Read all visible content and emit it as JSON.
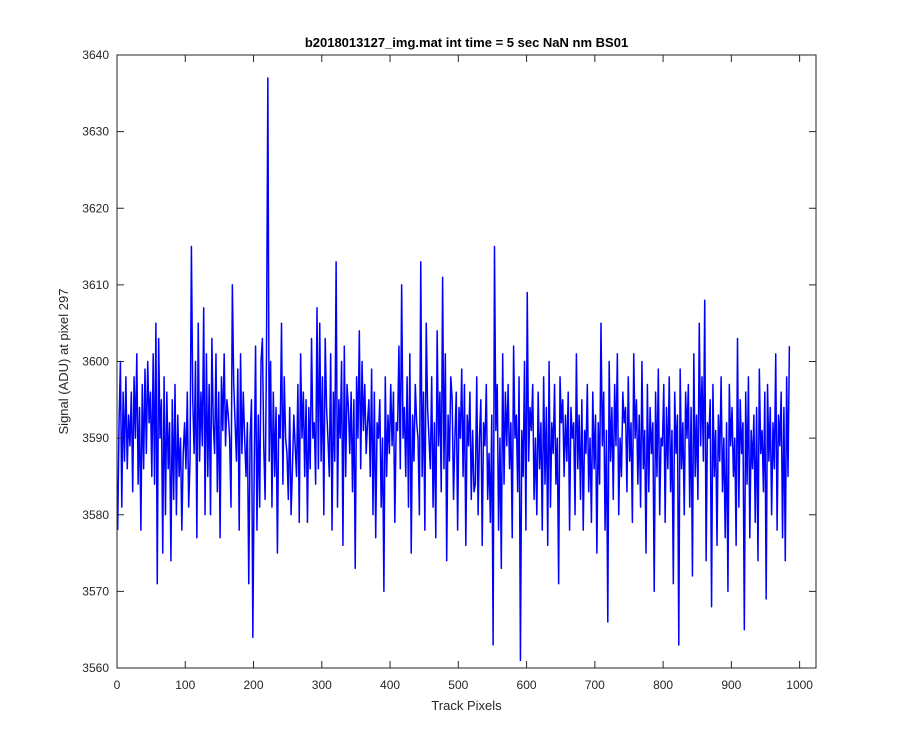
{
  "chart_data": {
    "type": "line",
    "title": "b2018013127_img.mat int time = 5 sec  NaN nm BS01",
    "xlabel": "Track Pixels",
    "ylabel": "Signal (ADU) at pixel 297",
    "xlim": [
      0,
      1024
    ],
    "ylim": [
      3560,
      3640
    ],
    "xticks": [
      "0",
      "100",
      "200",
      "300",
      "400",
      "500",
      "600",
      "700",
      "800",
      "900",
      "1000"
    ],
    "yticks": [
      "3560",
      "3570",
      "3580",
      "3590",
      "3600",
      "3610",
      "3620",
      "3630",
      "3640"
    ],
    "grid": false,
    "box": true,
    "series": [
      {
        "color": "#0000ff",
        "x_start": 1,
        "x_step": 1,
        "sample_spacing": 2,
        "values": [
          3578,
          3592,
          3600,
          3581,
          3596,
          3587,
          3598,
          3586,
          3593,
          3589,
          3596,
          3583,
          3598,
          3590,
          3601,
          3584,
          3594,
          3578,
          3597,
          3586,
          3599,
          3588,
          3600,
          3592,
          3596,
          3585,
          3601,
          3584,
          3605,
          3571,
          3603,
          3590,
          3595,
          3575,
          3598,
          3580,
          3596,
          3586,
          3592,
          3574,
          3595,
          3582,
          3597,
          3580,
          3593,
          3585,
          3590,
          3578,
          3588,
          3592,
          3586,
          3596,
          3581,
          3587,
          3615,
          3595,
          3588,
          3600,
          3577,
          3605,
          3587,
          3596,
          3589,
          3607,
          3580,
          3601,
          3585,
          3597,
          3580,
          3603,
          3592,
          3588,
          3601,
          3583,
          3596,
          3577,
          3598,
          3591,
          3601,
          3589,
          3595,
          3593,
          3590,
          3581,
          3610,
          3597,
          3592,
          3587,
          3599,
          3578,
          3601,
          3588,
          3596,
          3590,
          3585,
          3592,
          3571,
          3590,
          3595,
          3564,
          3586,
          3602,
          3578,
          3593,
          3581,
          3600,
          3603,
          3589,
          3582,
          3601,
          3637,
          3587,
          3600,
          3581,
          3596,
          3585,
          3594,
          3575,
          3593,
          3590,
          3605,
          3584,
          3598,
          3590,
          3588,
          3582,
          3594,
          3580,
          3586,
          3593,
          3589,
          3585,
          3597,
          3579,
          3601,
          3590,
          3596,
          3585,
          3595,
          3579,
          3594,
          3586,
          3603,
          3590,
          3592,
          3584,
          3607,
          3586,
          3605,
          3587,
          3598,
          3580,
          3603,
          3594,
          3590,
          3585,
          3601,
          3578,
          3596,
          3587,
          3613,
          3581,
          3595,
          3590,
          3600,
          3576,
          3602,
          3585,
          3597,
          3594,
          3588,
          3596,
          3583,
          3595,
          3573,
          3598,
          3590,
          3604,
          3586,
          3600,
          3591,
          3597,
          3588,
          3592,
          3595,
          3585,
          3599,
          3580,
          3596,
          3577,
          3592,
          3590,
          3595,
          3581,
          3590,
          3570,
          3598,
          3585,
          3593,
          3588,
          3597,
          3589,
          3596,
          3579,
          3592,
          3591,
          3602,
          3586,
          3610,
          3590,
          3594,
          3585,
          3598,
          3581,
          3601,
          3575,
          3593,
          3587,
          3597,
          3592,
          3590,
          3580,
          3613,
          3585,
          3596,
          3578,
          3605,
          3594,
          3590,
          3586,
          3598,
          3581,
          3592,
          3577,
          3604,
          3589,
          3596,
          3583,
          3611,
          3586,
          3601,
          3574,
          3593,
          3587,
          3598,
          3595,
          3582,
          3590,
          3596,
          3578,
          3594,
          3590,
          3599,
          3585,
          3597,
          3576,
          3593,
          3589,
          3596,
          3582,
          3591,
          3583,
          3584,
          3598,
          3580,
          3590,
          3595,
          3576,
          3592,
          3589,
          3597,
          3582,
          3588,
          3579,
          3593,
          3563,
          3615,
          3591,
          3597,
          3578,
          3590,
          3573,
          3601,
          3584,
          3596,
          3589,
          3597,
          3586,
          3592,
          3577,
          3602,
          3590,
          3593,
          3583,
          3598,
          3561,
          3591,
          3585,
          3600,
          3578,
          3609,
          3587,
          3594,
          3591,
          3597,
          3582,
          3590,
          3580,
          3596,
          3586,
          3592,
          3578,
          3598,
          3584,
          3594,
          3576,
          3600,
          3581,
          3592,
          3588,
          3597,
          3584,
          3590,
          3571,
          3598,
          3592,
          3595,
          3585,
          3593,
          3587,
          3596,
          3578,
          3594,
          3590,
          3592,
          3580,
          3601,
          3586,
          3593,
          3582,
          3595,
          3578,
          3591,
          3588,
          3597,
          3583,
          3590,
          3579,
          3596,
          3586,
          3593,
          3575,
          3592,
          3584,
          3605,
          3589,
          3596,
          3578,
          3591,
          3566,
          3600,
          3587,
          3594,
          3582,
          3597,
          3589,
          3601,
          3580,
          3590,
          3585,
          3596,
          3592,
          3594,
          3583,
          3598,
          3587,
          3592,
          3579,
          3601,
          3590,
          3595,
          3584,
          3593,
          3581,
          3600,
          3586,
          3591,
          3575,
          3597,
          3583,
          3594,
          3588,
          3592,
          3570,
          3596,
          3585,
          3599,
          3580,
          3590,
          3589,
          3597,
          3579,
          3594,
          3586,
          3598,
          3583,
          3591,
          3571,
          3596,
          3588,
          3593,
          3563,
          3599,
          3586,
          3592,
          3580,
          3596,
          3590,
          3597,
          3581,
          3594,
          3572,
          3601,
          3585,
          3593,
          3582,
          3605,
          3589,
          3598,
          3587,
          3608,
          3574,
          3592,
          3590,
          3595,
          3568,
          3597,
          3585,
          3591,
          3576,
          3593,
          3587,
          3598,
          3583,
          3590,
          3577,
          3592,
          3570,
          3597,
          3589,
          3594,
          3585,
          3590,
          3576,
          3603,
          3581,
          3595,
          3588,
          3592,
          3565,
          3596,
          3584,
          3598,
          3577,
          3591,
          3586,
          3593,
          3579,
          3594,
          3574,
          3599,
          3588,
          3591,
          3583,
          3596,
          3569,
          3597,
          3587,
          3594,
          3580,
          3592,
          3586,
          3601,
          3578,
          3593,
          3589,
          3596,
          3577,
          3594,
          3574,
          3598,
          3585,
          3602
        ]
      }
    ]
  }
}
